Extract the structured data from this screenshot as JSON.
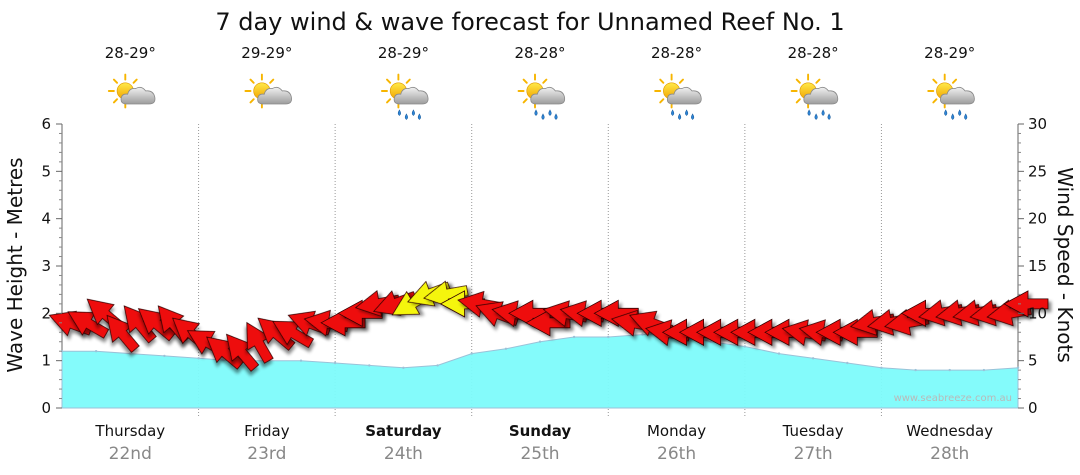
{
  "chart_data": {
    "type": "area",
    "title": "7 day wind & wave forecast for Unnamed Reef No. 1",
    "ylabel": "Wave Height - Metres",
    "y2label": "Wind Speed - Knots",
    "ylim": [
      0,
      6
    ],
    "y2lim": [
      0,
      30
    ],
    "yticks": [
      "0",
      "1",
      "2",
      "3",
      "4",
      "5",
      "6"
    ],
    "y2ticks": [
      "0",
      "5",
      "10",
      "15",
      "20",
      "25",
      "30"
    ],
    "watermark": "www.seabreeze.com.au",
    "days": [
      {
        "name": "Thursday",
        "date": "22nd",
        "temp": "28-29°",
        "weather": "partly-cloudy",
        "weekend": false
      },
      {
        "name": "Friday",
        "date": "23rd",
        "temp": "29-29°",
        "weather": "partly-cloudy",
        "weekend": false
      },
      {
        "name": "Saturday",
        "date": "24th",
        "temp": "28-29°",
        "weather": "showers",
        "weekend": true
      },
      {
        "name": "Sunday",
        "date": "25th",
        "temp": "28-28°",
        "weather": "showers",
        "weekend": true
      },
      {
        "name": "Monday",
        "date": "26th",
        "temp": "28-28°",
        "weather": "showers",
        "weekend": false
      },
      {
        "name": "Tuesday",
        "date": "27th",
        "temp": "28-28°",
        "weather": "showers",
        "weekend": false
      },
      {
        "name": "Wednesday",
        "date": "28th",
        "temp": "28-29°",
        "weather": "showers",
        "weekend": false
      }
    ],
    "wave_series": {
      "name": "Wave Height (m)",
      "x_days": [
        0,
        0.25,
        0.5,
        0.75,
        1.0,
        1.25,
        1.5,
        1.75,
        2.0,
        2.25,
        2.5,
        2.75,
        3.0,
        3.25,
        3.5,
        3.75,
        4.0,
        4.25,
        4.5,
        4.75,
        5.0,
        5.25,
        5.5,
        5.75,
        6.0,
        6.25,
        6.5,
        6.75,
        7.0
      ],
      "values": [
        1.2,
        1.2,
        1.15,
        1.1,
        1.05,
        1.0,
        1.0,
        1.0,
        0.95,
        0.9,
        0.85,
        0.9,
        1.15,
        1.25,
        1.4,
        1.5,
        1.5,
        1.55,
        1.6,
        1.4,
        1.3,
        1.15,
        1.05,
        0.95,
        0.85,
        0.8,
        0.8,
        0.8,
        0.85
      ]
    },
    "wind_series": {
      "name": "Wind Speed (knots)",
      "x_days": [
        0.0,
        0.125,
        0.25,
        0.375,
        0.5,
        0.625,
        0.75,
        0.875,
        1.0,
        1.125,
        1.25,
        1.375,
        1.5,
        1.625,
        1.75,
        1.875,
        2.0,
        2.125,
        2.25,
        2.375,
        2.5,
        2.625,
        2.75,
        2.875,
        3.0,
        3.125,
        3.25,
        3.375,
        3.5,
        3.625,
        3.75,
        3.875,
        4.0,
        4.125,
        4.25,
        4.375,
        4.5,
        4.625,
        4.75,
        4.875,
        5.0,
        5.125,
        5.25,
        5.375,
        5.5,
        5.625,
        5.75,
        5.875,
        6.0,
        6.125,
        6.25,
        6.375,
        6.5,
        6.625,
        6.75,
        6.875,
        7.0
      ],
      "values": [
        9,
        9,
        10,
        8,
        9,
        9,
        9,
        8,
        7,
        6,
        6,
        7,
        8,
        8,
        9,
        9,
        9,
        10,
        11,
        11,
        11,
        12,
        12,
        11,
        11,
        10,
        10,
        10,
        9,
        10,
        10,
        10,
        10,
        9,
        9,
        8,
        8,
        8,
        8,
        8,
        8,
        8,
        8,
        8,
        8,
        8,
        8,
        9,
        9,
        9,
        10,
        10,
        10,
        10,
        10,
        10,
        11
      ],
      "direction_deg": [
        290,
        300,
        310,
        320,
        320,
        310,
        320,
        310,
        300,
        310,
        320,
        330,
        310,
        300,
        290,
        280,
        270,
        270,
        260,
        250,
        240,
        250,
        260,
        270,
        280,
        290,
        280,
        270,
        270,
        280,
        280,
        270,
        270,
        280,
        290,
        280,
        270,
        270,
        270,
        270,
        270,
        270,
        270,
        280,
        280,
        270,
        270,
        260,
        260,
        260,
        270,
        260,
        260,
        260,
        260,
        260,
        270
      ],
      "strong_highlight": [
        false,
        false,
        false,
        false,
        false,
        false,
        false,
        false,
        false,
        false,
        false,
        false,
        false,
        false,
        false,
        false,
        false,
        false,
        false,
        false,
        true,
        true,
        true,
        true,
        false,
        false,
        false,
        false,
        false,
        false,
        false,
        false,
        false,
        false,
        false,
        false,
        false,
        false,
        false,
        false,
        false,
        false,
        false,
        false,
        false,
        false,
        false,
        false,
        false,
        false,
        false,
        false,
        false,
        false,
        false,
        false,
        false
      ]
    },
    "colors": {
      "wave_fill": "#7dfbfb",
      "wave_line": "#9bc2d8",
      "arrow": "#ee1111",
      "arrow_yellow": "#f5f50f",
      "arrow_stroke": "#330000",
      "grid": "#999999"
    }
  }
}
